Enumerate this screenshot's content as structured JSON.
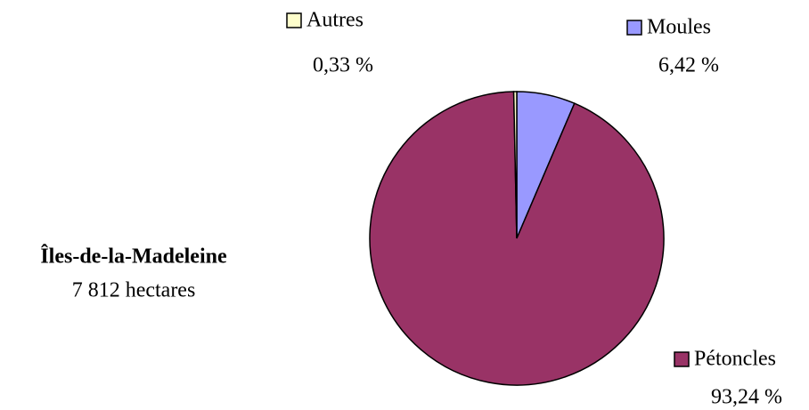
{
  "chart_data": {
    "type": "pie",
    "title": "Îles-de-la-Madeleine",
    "subtitle": "7 812 hectares",
    "categories": [
      "Moules",
      "Pétoncles",
      "Autres"
    ],
    "values": [
      6.42,
      93.24,
      0.33
    ],
    "value_labels": [
      "6,42 %",
      "93,24 %",
      "0,33 %"
    ],
    "colors": [
      "#9999ff",
      "#993366",
      "#ffffcc"
    ]
  }
}
